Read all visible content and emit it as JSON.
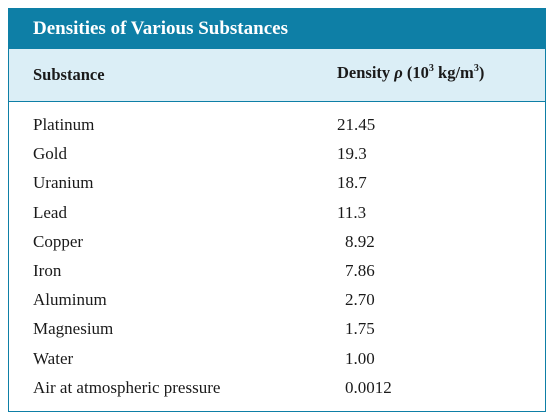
{
  "table": {
    "title": "Densities of Various Substances",
    "headers": {
      "substance": "Substance",
      "density_prefix": "Density ",
      "density_symbol": "ρ",
      "density_unit_a": " (10",
      "density_exp_a": "3",
      "density_unit_b": " kg/m",
      "density_exp_b": "3",
      "density_unit_c": ")"
    },
    "rows": [
      {
        "substance": "Platinum",
        "density": "21.45"
      },
      {
        "substance": "Gold",
        "density": "19.3"
      },
      {
        "substance": "Uranium",
        "density": "18.7"
      },
      {
        "substance": "Lead",
        "density": "11.3"
      },
      {
        "substance": "Copper",
        "density": "8.92"
      },
      {
        "substance": "Iron",
        "density": "7.86"
      },
      {
        "substance": "Aluminum",
        "density": "2.70"
      },
      {
        "substance": "Magnesium",
        "density": "1.75"
      },
      {
        "substance": "Water",
        "density": "1.00"
      },
      {
        "substance": "Air at atmospheric pressure",
        "density": "0.0012"
      }
    ]
  }
}
